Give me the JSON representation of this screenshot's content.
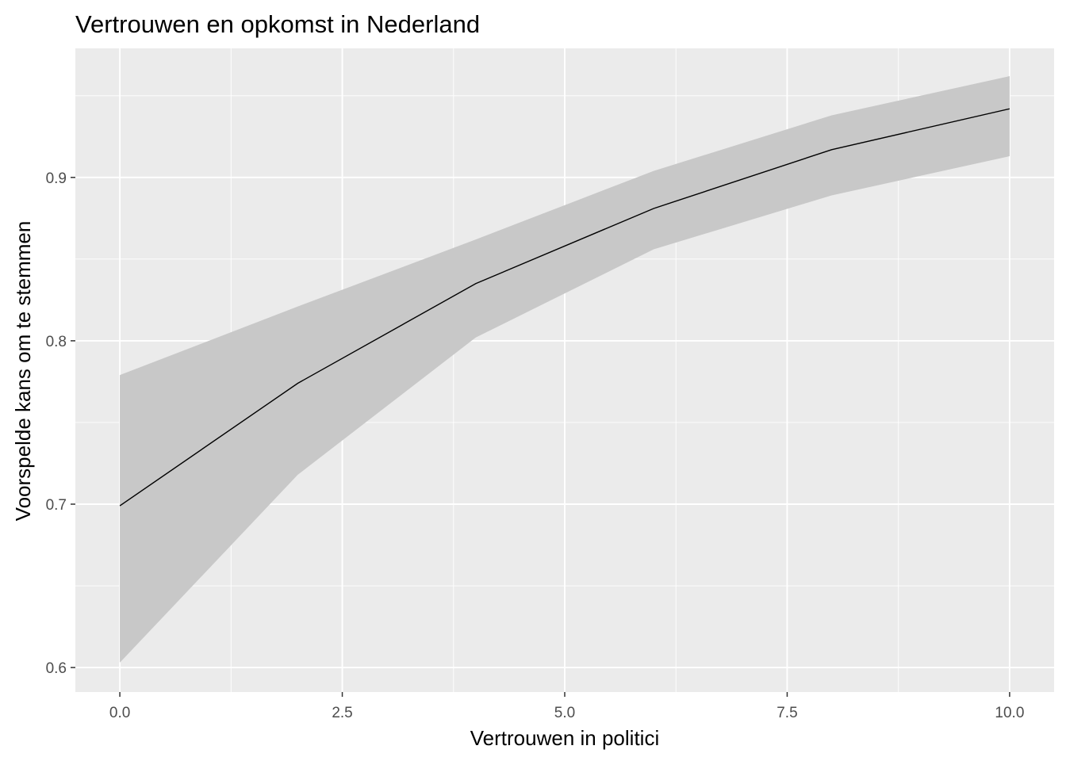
{
  "chart_data": {
    "type": "line",
    "title": "Vertrouwen en opkomst in Nederland",
    "xlabel": "Vertrouwen in politici",
    "ylabel": "Voorspelde kans om te stemmen",
    "xlim": [
      -0.5,
      10.5
    ],
    "ylim": [
      0.585,
      0.979
    ],
    "x_ticks": [
      0.0,
      2.5,
      5.0,
      7.5,
      10.0
    ],
    "x_tick_labels": [
      "0.0",
      "2.5",
      "5.0",
      "7.5",
      "10.0"
    ],
    "y_ticks": [
      0.6,
      0.7,
      0.8,
      0.9
    ],
    "y_tick_labels": [
      "0.6",
      "0.7",
      "0.8",
      "0.9"
    ],
    "grid": true,
    "legend": "none",
    "series": [
      {
        "x": [
          0,
          2,
          4,
          6,
          8,
          10
        ],
        "values": [
          0.699,
          0.774,
          0.835,
          0.881,
          0.917,
          0.942
        ],
        "lower": [
          0.603,
          0.718,
          0.802,
          0.856,
          0.889,
          0.913
        ],
        "upper": [
          0.779,
          0.821,
          0.862,
          0.904,
          0.938,
          0.962
        ]
      }
    ],
    "colors": {
      "panel": "#EBEBEB",
      "grid": "#FFFFFF",
      "ribbon": "#C8C8C8",
      "line": "#000000",
      "tick": "#333333"
    }
  }
}
